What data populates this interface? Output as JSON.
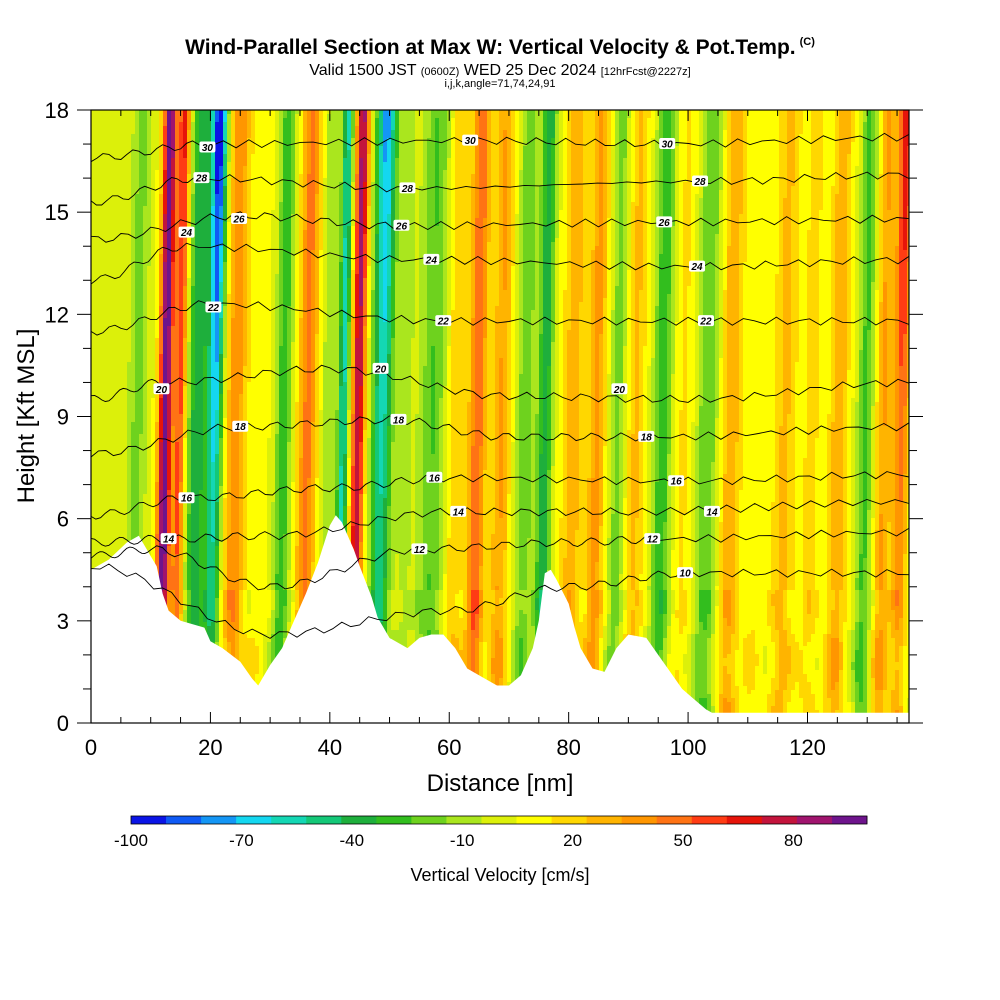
{
  "title": "Wind-Parallel Section at Max W: Vertical Velocity & Pot.Temp.",
  "copyright_mark": "(C)",
  "subtitle_prefix": "Valid 1500 JST",
  "subtitle_utc": "(0600Z)",
  "subtitle_date": "WED 25 Dec 2024",
  "subtitle_fcst": "[12hrFcst@2227z]",
  "subtitle2": "i,j,k,angle=71,74,24,91",
  "chart_data": {
    "type": "heatmap",
    "xlabel": "Distance [nm]",
    "ylabel": "Height [Kft MSL]",
    "xlim": [
      0,
      137
    ],
    "ylim": [
      0,
      18
    ],
    "x_ticks": [
      0,
      20,
      40,
      60,
      80,
      100,
      120
    ],
    "y_ticks": [
      0,
      3,
      6,
      9,
      12,
      15,
      18
    ],
    "colorbar": {
      "label": "Vertical Velocity [cm/s]",
      "range": [
        -100,
        100
      ],
      "tick_values": [
        -100,
        -70,
        -40,
        -10,
        20,
        50,
        80
      ],
      "tick_labels": [
        "-100",
        "-70",
        "-40",
        "-10",
        "20",
        "50",
        "80"
      ],
      "colors": [
        "#0a14e6",
        "#0f5af5",
        "#1496f5",
        "#14d7f0",
        "#14d7b4",
        "#14c878",
        "#1eaf3c",
        "#32be1e",
        "#6ed21e",
        "#aae61e",
        "#dcf00a",
        "#ffff00",
        "#ffd700",
        "#ffb400",
        "#ff9600",
        "#ff7314",
        "#ff3c14",
        "#e6140a",
        "#c3143c",
        "#a0146e",
        "#6e148c"
      ]
    },
    "terrain_kft": [
      [
        0,
        4.5
      ],
      [
        3,
        4.8
      ],
      [
        6,
        5.3
      ],
      [
        8,
        5.5
      ],
      [
        10,
        4.9
      ],
      [
        11,
        4.6
      ],
      [
        12,
        3.8
      ],
      [
        13,
        3.3
      ],
      [
        15,
        3.0
      ],
      [
        19,
        2.8
      ],
      [
        20,
        2.4
      ],
      [
        22,
        2.2
      ],
      [
        25,
        1.8
      ],
      [
        27,
        1.3
      ],
      [
        28,
        1.1
      ],
      [
        30,
        1.7
      ],
      [
        32,
        2.2
      ],
      [
        34,
        3.0
      ],
      [
        36,
        3.8
      ],
      [
        38,
        4.7
      ],
      [
        40,
        5.8
      ],
      [
        41,
        6.1
      ],
      [
        42,
        5.9
      ],
      [
        44,
        5.1
      ],
      [
        45,
        4.6
      ],
      [
        47,
        3.7
      ],
      [
        48,
        3.1
      ],
      [
        50,
        2.5
      ],
      [
        53,
        2.2
      ],
      [
        55,
        2.5
      ],
      [
        57,
        2.6
      ],
      [
        59,
        2.6
      ],
      [
        61,
        2.2
      ],
      [
        63,
        1.6
      ],
      [
        66,
        1.3
      ],
      [
        68,
        1.1
      ],
      [
        70,
        1.1
      ],
      [
        72,
        1.4
      ],
      [
        74,
        2.2
      ],
      [
        75,
        3.0
      ],
      [
        76,
        4.4
      ],
      [
        77,
        4.5
      ],
      [
        78,
        4.2
      ],
      [
        80,
        3.5
      ],
      [
        81,
        2.8
      ],
      [
        82,
        2.2
      ],
      [
        84,
        1.6
      ],
      [
        86,
        1.5
      ],
      [
        88,
        2.2
      ],
      [
        90,
        2.6
      ],
      [
        93,
        2.5
      ],
      [
        95,
        2.0
      ],
      [
        97,
        1.5
      ],
      [
        99,
        1.0
      ],
      [
        101,
        0.7
      ],
      [
        103,
        0.4
      ],
      [
        104,
        0.3
      ],
      [
        110,
        0.3
      ],
      [
        137,
        0.3
      ]
    ],
    "theta_contours_c": [
      {
        "theta": 10,
        "height_kft_at_x": [
          [
            0,
            4.6
          ],
          [
            30,
            2.6
          ],
          [
            60,
            3.3
          ],
          [
            80,
            4.0
          ],
          [
            100,
            4.4
          ],
          [
            137,
            4.4
          ]
        ]
      },
      {
        "theta": 12,
        "height_kft_at_x": [
          [
            0,
            4.9
          ],
          [
            10,
            5.1
          ],
          [
            30,
            4.0
          ],
          [
            55,
            5.1
          ],
          [
            80,
            5.3
          ],
          [
            95,
            5.4
          ],
          [
            137,
            5.6
          ]
        ]
      },
      {
        "theta": 14,
        "height_kft_at_x": [
          [
            0,
            5.3
          ],
          [
            12,
            5.4
          ],
          [
            30,
            5.5
          ],
          [
            60,
            6.2
          ],
          [
            90,
            6.2
          ],
          [
            137,
            6.5
          ]
        ]
      },
      {
        "theta": 16,
        "height_kft_at_x": [
          [
            0,
            6.1
          ],
          [
            16,
            6.6
          ],
          [
            40,
            6.9
          ],
          [
            60,
            7.2
          ],
          [
            100,
            7.1
          ],
          [
            137,
            7.3
          ]
        ]
      },
      {
        "theta": 18,
        "height_kft_at_x": [
          [
            0,
            7.9
          ],
          [
            25,
            8.7
          ],
          [
            50,
            8.9
          ],
          [
            70,
            8.4
          ],
          [
            95,
            8.4
          ],
          [
            137,
            8.7
          ]
        ]
      },
      {
        "theta": 20,
        "height_kft_at_x": [
          [
            0,
            9.5
          ],
          [
            12,
            10.0
          ],
          [
            40,
            10.4
          ],
          [
            70,
            9.6
          ],
          [
            100,
            9.5
          ],
          [
            137,
            10.0
          ]
        ]
      },
      {
        "theta": 22,
        "height_kft_at_x": [
          [
            0,
            11.5
          ],
          [
            20,
            12.3
          ],
          [
            60,
            11.8
          ],
          [
            100,
            11.8
          ],
          [
            137,
            11.8
          ]
        ]
      },
      {
        "theta": 24,
        "height_kft_at_x": [
          [
            0,
            13.0
          ],
          [
            16,
            14.0
          ],
          [
            56,
            13.6
          ],
          [
            100,
            13.4
          ],
          [
            137,
            13.6
          ]
        ]
      },
      {
        "theta": 26,
        "height_kft_at_x": [
          [
            0,
            14.2
          ],
          [
            25,
            14.9
          ],
          [
            52,
            14.6
          ],
          [
            96,
            14.7
          ],
          [
            137,
            14.8
          ]
        ]
      },
      {
        "theta": 28,
        "height_kft_at_x": [
          [
            0,
            15.3
          ],
          [
            18,
            16.0
          ],
          [
            53,
            15.7
          ],
          [
            102,
            15.9
          ],
          [
            137,
            16.1
          ]
        ]
      },
      {
        "theta": 30,
        "height_kft_at_x": [
          [
            0,
            16.6
          ],
          [
            20,
            17.0
          ],
          [
            63,
            17.1
          ],
          [
            96,
            17.0
          ],
          [
            137,
            17.2
          ]
        ]
      }
    ],
    "theta_labels": [
      {
        "text": "30",
        "x": 19.5,
        "y": 16.9
      },
      {
        "text": "28",
        "x": 18.5,
        "y": 16.0
      },
      {
        "text": "26",
        "x": 24.8,
        "y": 14.8
      },
      {
        "text": "24",
        "x": 16.0,
        "y": 14.4
      },
      {
        "text": "22",
        "x": 20.5,
        "y": 12.2
      },
      {
        "text": "20",
        "x": 11.8,
        "y": 9.8
      },
      {
        "text": "18",
        "x": 25.0,
        "y": 8.7
      },
      {
        "text": "16",
        "x": 16.0,
        "y": 6.6
      },
      {
        "text": "14",
        "x": 13.0,
        "y": 5.4
      },
      {
        "text": "30",
        "x": 63.5,
        "y": 17.1
      },
      {
        "text": "28",
        "x": 53.0,
        "y": 15.7
      },
      {
        "text": "26",
        "x": 52.0,
        "y": 14.6
      },
      {
        "text": "24",
        "x": 57.0,
        "y": 13.6
      },
      {
        "text": "22",
        "x": 59.0,
        "y": 11.8
      },
      {
        "text": "20",
        "x": 48.5,
        "y": 10.4
      },
      {
        "text": "18",
        "x": 51.5,
        "y": 8.9
      },
      {
        "text": "16",
        "x": 57.5,
        "y": 7.2
      },
      {
        "text": "14",
        "x": 61.5,
        "y": 6.2
      },
      {
        "text": "12",
        "x": 55.0,
        "y": 5.1
      },
      {
        "text": "30",
        "x": 96.5,
        "y": 17.0
      },
      {
        "text": "28",
        "x": 102.0,
        "y": 15.9
      },
      {
        "text": "26",
        "x": 96.0,
        "y": 14.7
      },
      {
        "text": "24",
        "x": 101.5,
        "y": 13.4
      },
      {
        "text": "22",
        "x": 103.0,
        "y": 11.8
      },
      {
        "text": "20",
        "x": 88.5,
        "y": 9.8
      },
      {
        "text": "18",
        "x": 93.0,
        "y": 8.4
      },
      {
        "text": "16",
        "x": 98.0,
        "y": 7.1
      },
      {
        "text": "14",
        "x": 104.0,
        "y": 6.2
      },
      {
        "text": "12",
        "x": 94.0,
        "y": 5.4
      },
      {
        "text": "10",
        "x": 99.5,
        "y": 4.4
      }
    ]
  }
}
